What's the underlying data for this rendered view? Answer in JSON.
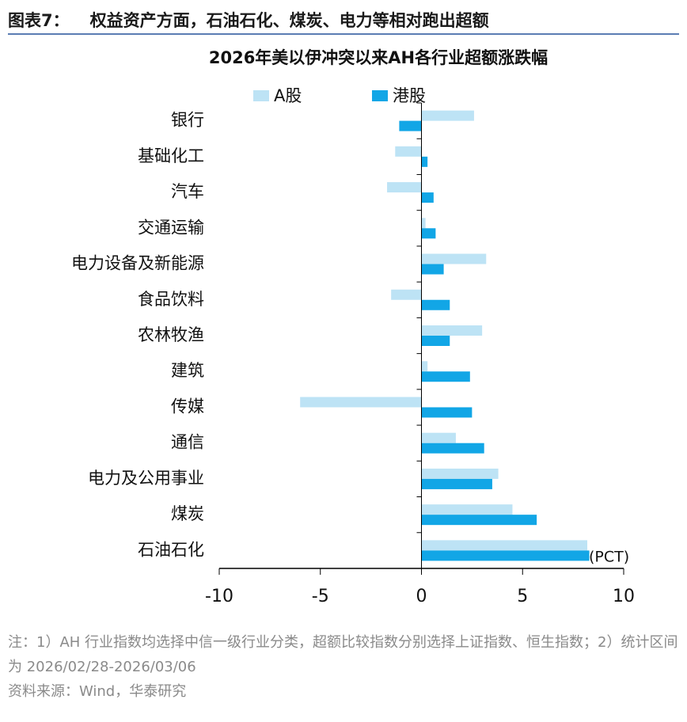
{
  "figure_label": "图表7：",
  "header": "权益资产方面，石油石化、煤炭、电力等相对跑出超额",
  "chart_data": {
    "type": "hbar",
    "title": "2026年美以伊冲突以来AH各行业超额涨跌幅",
    "categories": [
      "银行",
      "基础化工",
      "汽车",
      "交通运输",
      "电力设备及新能源",
      "食品饮料",
      "农林牧渔",
      "建筑",
      "传媒",
      "通信",
      "电力及公用事业",
      "煤炭",
      "石油石化"
    ],
    "series": [
      {
        "name": "A股",
        "color": "#bde3f5",
        "values": [
          2.6,
          -1.3,
          -1.7,
          0.2,
          3.2,
          -1.5,
          3.0,
          0.3,
          -6.0,
          1.7,
          3.8,
          4.5,
          8.2
        ]
      },
      {
        "name": "港股",
        "color": "#12a6e6",
        "values": [
          -1.1,
          0.3,
          0.6,
          0.7,
          1.1,
          1.4,
          1.4,
          2.4,
          2.5,
          3.1,
          3.5,
          5.7,
          8.3
        ]
      }
    ],
    "xlim": [
      -10,
      10
    ],
    "xticks": [
      -10,
      -5,
      0,
      5,
      10
    ],
    "unit_label": "(PCT)",
    "legend": "top"
  },
  "notes": "注：1）AH 行业指数均选择中信一级行业分类，超额比较指数分别选择上证指数、恒生指数；2）统计区间为 2026/02/28-2026/03/06",
  "source": "资料来源：Wind，华泰研究"
}
